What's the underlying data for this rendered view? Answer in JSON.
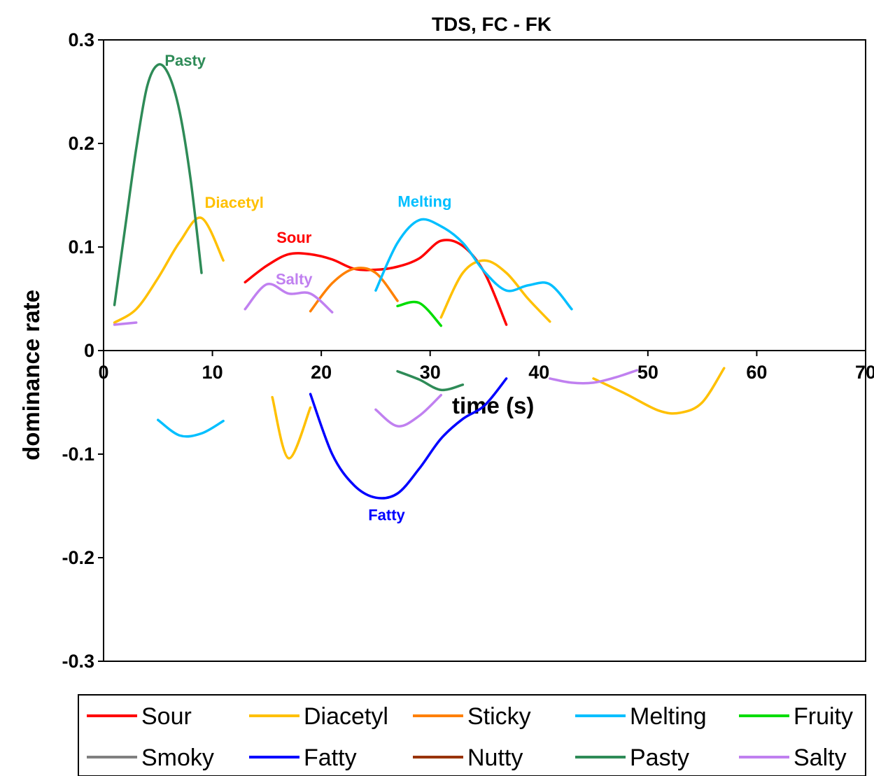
{
  "chart_data": {
    "type": "line",
    "title": "TDS, FC - FK",
    "xlabel": "time (s)",
    "ylabel": "dominance rate",
    "xlim": [
      0,
      70
    ],
    "ylim": [
      -0.3,
      0.3
    ],
    "x_ticks": [
      "0",
      "10",
      "20",
      "30",
      "40",
      "50",
      "60",
      "70"
    ],
    "y_ticks": [
      "0.3",
      "0.2",
      "0.1",
      "0",
      "-0.1",
      "-0.2",
      "-0.3"
    ],
    "grid": false,
    "legend_position": "bottom",
    "series": [
      {
        "name": "Sour",
        "color": "#ff0000",
        "segments": [
          [
            [
              13,
              0.066
            ],
            [
              15,
              0.082
            ],
            [
              17,
              0.093
            ],
            [
              19,
              0.093
            ],
            [
              21,
              0.088
            ],
            [
              23,
              0.079
            ],
            [
              25,
              0.078
            ],
            [
              27,
              0.081
            ],
            [
              29,
              0.089
            ],
            [
              31,
              0.106
            ],
            [
              33,
              0.101
            ],
            [
              35,
              0.075
            ],
            [
              37,
              0.025
            ]
          ]
        ]
      },
      {
        "name": "Diacetyl",
        "color": "#ffc000",
        "segments": [
          [
            [
              1,
              0.027
            ],
            [
              3,
              0.04
            ],
            [
              5,
              0.07
            ],
            [
              7,
              0.105
            ],
            [
              9,
              0.128
            ],
            [
              11,
              0.087
            ]
          ],
          [
            [
              31,
              0.032
            ],
            [
              33,
              0.075
            ],
            [
              35,
              0.087
            ],
            [
              37,
              0.075
            ],
            [
              39,
              0.05
            ],
            [
              41,
              0.028
            ]
          ],
          [
            [
              15.5,
              -0.045
            ],
            [
              17,
              -0.104
            ],
            [
              19,
              -0.055
            ]
          ],
          [
            [
              45,
              -0.027
            ],
            [
              48,
              -0.042
            ],
            [
              51,
              -0.058
            ],
            [
              53,
              -0.06
            ],
            [
              55,
              -0.05
            ],
            [
              57,
              -0.017
            ]
          ]
        ]
      },
      {
        "name": "Sticky",
        "color": "#ff8000",
        "segments": [
          [
            [
              19,
              0.038
            ],
            [
              21,
              0.065
            ],
            [
              23,
              0.079
            ],
            [
              25,
              0.075
            ],
            [
              27,
              0.048
            ]
          ]
        ]
      },
      {
        "name": "Melting",
        "color": "#00bfff",
        "segments": [
          [
            [
              25,
              0.058
            ],
            [
              27,
              0.104
            ],
            [
              29,
              0.126
            ],
            [
              31,
              0.12
            ],
            [
              33,
              0.104
            ],
            [
              35,
              0.076
            ],
            [
              37,
              0.058
            ],
            [
              39,
              0.063
            ],
            [
              41,
              0.064
            ],
            [
              43,
              0.04
            ]
          ],
          [
            [
              5,
              -0.067
            ],
            [
              7,
              -0.082
            ],
            [
              9,
              -0.08
            ],
            [
              11,
              -0.068
            ]
          ]
        ]
      },
      {
        "name": "Fruity",
        "color": "#00dd00",
        "segments": [
          [
            [
              27,
              0.043
            ],
            [
              29,
              0.046
            ],
            [
              31,
              0.024
            ]
          ]
        ]
      },
      {
        "name": "Smoky",
        "color": "#808080",
        "segments": []
      },
      {
        "name": "Fatty",
        "color": "#0000ff",
        "segments": [
          [
            [
              19,
              -0.042
            ],
            [
              21,
              -0.1
            ],
            [
              23,
              -0.13
            ],
            [
              25,
              -0.142
            ],
            [
              27,
              -0.138
            ],
            [
              29,
              -0.114
            ],
            [
              31,
              -0.085
            ],
            [
              33,
              -0.066
            ],
            [
              35,
              -0.053
            ],
            [
              37,
              -0.027
            ]
          ]
        ]
      },
      {
        "name": "Nutty",
        "color": "#993300",
        "segments": []
      },
      {
        "name": "Pasty",
        "color": "#2e8b57",
        "segments": [
          [
            [
              1,
              0.044
            ],
            [
              2,
              0.12
            ],
            [
              3,
              0.195
            ],
            [
              4,
              0.255
            ],
            [
              5,
              0.276
            ],
            [
              6,
              0.266
            ],
            [
              7,
              0.23
            ],
            [
              8,
              0.165
            ],
            [
              9,
              0.075
            ]
          ],
          [
            [
              27,
              -0.02
            ],
            [
              29,
              -0.028
            ],
            [
              31,
              -0.038
            ],
            [
              33,
              -0.033
            ]
          ]
        ]
      },
      {
        "name": "Salty",
        "color": "#c080f0",
        "segments": [
          [
            [
              1,
              0.025
            ],
            [
              3,
              0.027
            ]
          ],
          [
            [
              13,
              0.04
            ],
            [
              15,
              0.064
            ],
            [
              17,
              0.055
            ],
            [
              19,
              0.055
            ],
            [
              21,
              0.037
            ]
          ],
          [
            [
              25,
              -0.057
            ],
            [
              27,
              -0.073
            ],
            [
              29,
              -0.063
            ],
            [
              31,
              -0.043
            ]
          ],
          [
            [
              41,
              -0.027
            ],
            [
              43,
              -0.031
            ],
            [
              45,
              -0.031
            ],
            [
              47,
              -0.026
            ],
            [
              49,
              -0.019
            ]
          ]
        ]
      }
    ],
    "series_labels": [
      {
        "text": "Pasty",
        "series": "Pasty",
        "at": [
          7.5,
          0.275
        ]
      },
      {
        "text": "Diacetyl",
        "series": "Diacetyl",
        "at": [
          12,
          0.138
        ]
      },
      {
        "text": "Melting",
        "series": "Melting",
        "at": [
          29.5,
          0.139
        ]
      },
      {
        "text": "Sour",
        "series": "Sour",
        "at": [
          17.5,
          0.104
        ]
      },
      {
        "text": "Salty",
        "series": "Salty",
        "at": [
          17.5,
          0.064
        ]
      },
      {
        "text": "Fatty",
        "series": "Fatty",
        "at": [
          26,
          -0.164
        ]
      }
    ]
  }
}
